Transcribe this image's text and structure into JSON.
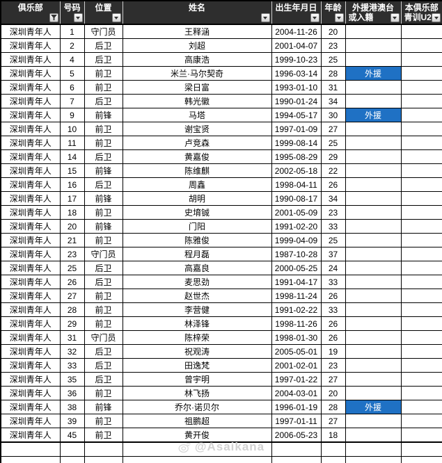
{
  "table": {
    "columns": [
      {
        "label": "俱乐部",
        "filter": "funnel"
      },
      {
        "label": "号码",
        "filter": "arrow"
      },
      {
        "label": "位置",
        "filter": "arrow"
      },
      {
        "label": "姓名",
        "filter": "arrow"
      },
      {
        "label": "出生年月日",
        "filter": "arrow"
      },
      {
        "label": "年龄",
        "filter": "arrow"
      },
      {
        "label": "外援港澳台",
        "label2": "或入籍",
        "filter": "arrow"
      },
      {
        "label": "本俱乐部",
        "label2": "青训U2",
        "filter": "arrow"
      }
    ],
    "keys": [
      "club",
      "number",
      "position",
      "name",
      "dob",
      "age",
      "foreign",
      "youth"
    ],
    "rows": [
      [
        "深圳青年人",
        "1",
        "守门员",
        "王释涵",
        "2004-11-26",
        "20",
        "",
        ""
      ],
      [
        "深圳青年人",
        "2",
        "后卫",
        "刘超",
        "2001-04-07",
        "23",
        "",
        ""
      ],
      [
        "深圳青年人",
        "4",
        "后卫",
        "高康浩",
        "1999-10-23",
        "25",
        "",
        ""
      ],
      [
        "深圳青年人",
        "5",
        "前卫",
        "米兰·马尔契奇",
        "1996-03-14",
        "28",
        "外援",
        ""
      ],
      [
        "深圳青年人",
        "6",
        "前卫",
        "梁日富",
        "1993-01-10",
        "31",
        "",
        ""
      ],
      [
        "深圳青年人",
        "7",
        "后卫",
        "韩光徽",
        "1990-01-24",
        "34",
        "",
        ""
      ],
      [
        "深圳青年人",
        "9",
        "前锋",
        "马塔",
        "1994-05-17",
        "30",
        "外援",
        ""
      ],
      [
        "深圳青年人",
        "10",
        "前卫",
        "谢宝贤",
        "1997-01-09",
        "27",
        "",
        ""
      ],
      [
        "深圳青年人",
        "11",
        "前卫",
        "卢竞森",
        "1999-08-14",
        "25",
        "",
        ""
      ],
      [
        "深圳青年人",
        "14",
        "后卫",
        "黄嘉俊",
        "1995-08-29",
        "29",
        "",
        ""
      ],
      [
        "深圳青年人",
        "15",
        "前锋",
        "陈维麒",
        "2002-05-18",
        "22",
        "",
        ""
      ],
      [
        "深圳青年人",
        "16",
        "后卫",
        "周鑫",
        "1998-04-11",
        "26",
        "",
        ""
      ],
      [
        "深圳青年人",
        "17",
        "前锋",
        "胡明",
        "1990-08-17",
        "34",
        "",
        ""
      ],
      [
        "深圳青年人",
        "18",
        "前卫",
        "史堉铖",
        "2001-05-09",
        "23",
        "",
        ""
      ],
      [
        "深圳青年人",
        "20",
        "前锋",
        "门阳",
        "1991-02-20",
        "33",
        "",
        ""
      ],
      [
        "深圳青年人",
        "21",
        "前卫",
        "陈雅俊",
        "1999-04-09",
        "25",
        "",
        ""
      ],
      [
        "深圳青年人",
        "23",
        "守门员",
        "程月磊",
        "1987-10-28",
        "37",
        "",
        ""
      ],
      [
        "深圳青年人",
        "25",
        "后卫",
        "高嘉良",
        "2000-05-25",
        "24",
        "",
        ""
      ],
      [
        "深圳青年人",
        "26",
        "后卫",
        "麦思劲",
        "1991-04-17",
        "33",
        "",
        ""
      ],
      [
        "深圳青年人",
        "27",
        "前卫",
        "赵世杰",
        "1998-11-24",
        "26",
        "",
        ""
      ],
      [
        "深圳青年人",
        "28",
        "前卫",
        "李营健",
        "1991-02-22",
        "33",
        "",
        ""
      ],
      [
        "深圳青年人",
        "29",
        "前卫",
        "林泽锋",
        "1998-11-26",
        "26",
        "",
        ""
      ],
      [
        "深圳青年人",
        "31",
        "守门员",
        "陈梓荣",
        "1998-01-30",
        "26",
        "",
        ""
      ],
      [
        "深圳青年人",
        "32",
        "后卫",
        "祝观涛",
        "2005-05-01",
        "19",
        "",
        ""
      ],
      [
        "深圳青年人",
        "33",
        "后卫",
        "田逸梵",
        "2001-02-01",
        "23",
        "",
        ""
      ],
      [
        "深圳青年人",
        "35",
        "后卫",
        "曾宇明",
        "1997-01-22",
        "27",
        "",
        ""
      ],
      [
        "深圳青年人",
        "36",
        "前卫",
        "林飞扬",
        "2004-03-01",
        "20",
        "",
        ""
      ],
      [
        "深圳青年人",
        "38",
        "前锋",
        "乔尔·诺贝尔",
        "1996-01-19",
        "28",
        "外援",
        ""
      ],
      [
        "深圳青年人",
        "39",
        "前卫",
        "祖鹏超",
        "1997-01-11",
        "27",
        "",
        ""
      ],
      [
        "深圳青年人",
        "45",
        "前卫",
        "黄开俊",
        "2006-05-23",
        "18",
        "",
        ""
      ]
    ],
    "empty_row_count": 3,
    "foreign_label": "外援"
  },
  "watermark": {
    "text": "@Asaikana"
  },
  "colors": {
    "header_bg": "#2e2e2e",
    "header_text": "#ffffff",
    "foreign_bg": "#1f71c4",
    "foreign_text": "#ffffff",
    "grid": "#000000"
  }
}
